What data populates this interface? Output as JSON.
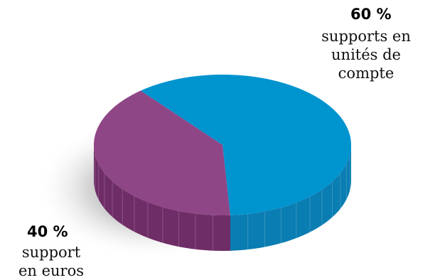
{
  "chart_data": {
    "type": "pie",
    "style": "3d",
    "slices": [
      {
        "percent_label": "60 %",
        "value": 60,
        "desc_lines": [
          "supports en",
          "unités de",
          "compte"
        ],
        "color": "#0094CF",
        "side_color": "#0A7DB2",
        "label_color": "#1BA3DD"
      },
      {
        "percent_label": "40 %",
        "value": 40,
        "desc_lines": [
          "support",
          "en euros"
        ],
        "color": "#8F4686",
        "side_color": "#6E2D66",
        "label_color": "#9E4A93"
      }
    ],
    "legend": "none",
    "grid": false
  }
}
